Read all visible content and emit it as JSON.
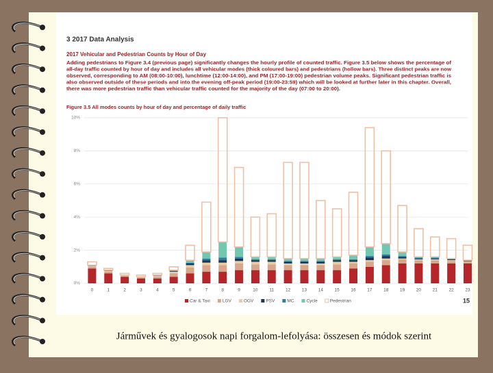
{
  "page": {
    "heading": "3 2017 Data Analysis",
    "subheading": "2017 Vehicular and Pedestrian Counts by Hour of Day",
    "paragraph": [
      "Adding pedestrians to Figure 3.4 (previous page) significantly changes the hourly profile of counted traffic. Figure 3.5 below shows the percentage of",
      "all-day traffic counted by hour of day and includes all vehicular modes (thick coloured bars) and pedestrians (hollow bars). Three distinct peaks are now",
      "observed, corresponding to AM (08:00-10:00), lunchtime (12:00-14:00), and PM (17:00-19:00) pedestrian volume peaks. Significant pedestrian traffic is",
      "also observed outside of these periods and into the evening off-peak period (19:00-23:59) which will be looked at further later in this chapter. Overall,",
      "there was more pedestrian traffic than vehicular traffic counted for the majority of the day (07:00 to 20:00)."
    ],
    "page_number": "15",
    "caption": "Járművek és gyalogosok napi forgalom-lefolyása: összesen és módok szerint"
  },
  "chart_data": {
    "type": "stacked_bar",
    "title": "Figure 3.5 All modes counts by hour of day and percentage of daily traffic",
    "categories": [
      "0",
      "1",
      "2",
      "3",
      "4",
      "5",
      "6",
      "7",
      "8",
      "9",
      "10",
      "11",
      "12",
      "13",
      "14",
      "15",
      "16",
      "17",
      "18",
      "19",
      "20",
      "21",
      "22",
      "23"
    ],
    "series": [
      {
        "name": "Car & Taxi",
        "color": "#b5262b",
        "values": [
          0.9,
          0.6,
          0.4,
          0.3,
          0.3,
          0.4,
          0.6,
          0.7,
          0.7,
          0.8,
          0.8,
          0.8,
          0.8,
          0.8,
          0.8,
          0.8,
          0.9,
          1.0,
          1.1,
          1.2,
          1.2,
          1.2,
          1.2,
          1.2
        ]
      },
      {
        "name": "LGV",
        "color": "#d8a68d",
        "values": [
          0.1,
          0.1,
          0.05,
          0.05,
          0.1,
          0.2,
          0.35,
          0.4,
          0.4,
          0.4,
          0.35,
          0.35,
          0.3,
          0.3,
          0.3,
          0.35,
          0.3,
          0.3,
          0.3,
          0.25,
          0.2,
          0.2,
          0.15,
          0.1
        ]
      },
      {
        "name": "OGV",
        "color": "#e9cf9f",
        "values": [
          0.05,
          0.05,
          0.03,
          0.03,
          0.05,
          0.1,
          0.15,
          0.15,
          0.15,
          0.15,
          0.15,
          0.15,
          0.1,
          0.1,
          0.1,
          0.15,
          0.1,
          0.1,
          0.1,
          0.05,
          0.05,
          0.05,
          0.05,
          0.03
        ]
      },
      {
        "name": "PSV",
        "color": "#1d3557",
        "values": [
          0.02,
          0.02,
          0.01,
          0.01,
          0.02,
          0.04,
          0.1,
          0.15,
          0.15,
          0.15,
          0.1,
          0.1,
          0.1,
          0.1,
          0.1,
          0.1,
          0.1,
          0.15,
          0.15,
          0.1,
          0.05,
          0.05,
          0.05,
          0.03
        ]
      },
      {
        "name": "MC",
        "color": "#2a7fa3",
        "values": [
          0.01,
          0.01,
          0.01,
          0.01,
          0.01,
          0.02,
          0.05,
          0.1,
          0.15,
          0.1,
          0.05,
          0.05,
          0.05,
          0.05,
          0.05,
          0.05,
          0.05,
          0.1,
          0.1,
          0.05,
          0.05,
          0.05,
          0.02,
          0.02
        ]
      },
      {
        "name": "Cycle",
        "color": "#73c6b0",
        "values": [
          0.02,
          0.02,
          0,
          0,
          0.02,
          0.04,
          0.15,
          0.4,
          0.95,
          0.6,
          0.15,
          0.15,
          0.15,
          0.15,
          0.15,
          0.15,
          0.25,
          0.55,
          0.65,
          0.25,
          0.05,
          0.05,
          0.03,
          0.02
        ]
      },
      {
        "name": "Pedestrian",
        "color": "#efbfa6",
        "hollow": true,
        "values": [
          0.2,
          0.1,
          0.1,
          0.1,
          0.1,
          0.2,
          0.9,
          3.0,
          7.5,
          4.8,
          2.4,
          2.6,
          5.8,
          5.8,
          3.5,
          2.9,
          3.8,
          7.2,
          5.6,
          2.8,
          1.7,
          1.2,
          1.2,
          0.9
        ]
      }
    ],
    "ylim": [
      0,
      10
    ],
    "yticks": [
      {
        "value": 0,
        "label": "0%"
      },
      {
        "value": 2,
        "label": "2%"
      },
      {
        "value": 4,
        "label": "4%"
      },
      {
        "value": 6,
        "label": "6%"
      },
      {
        "value": 8,
        "label": "8%"
      },
      {
        "value": 10,
        "label": "10%"
      }
    ],
    "grid": true,
    "legend": "bottom"
  }
}
